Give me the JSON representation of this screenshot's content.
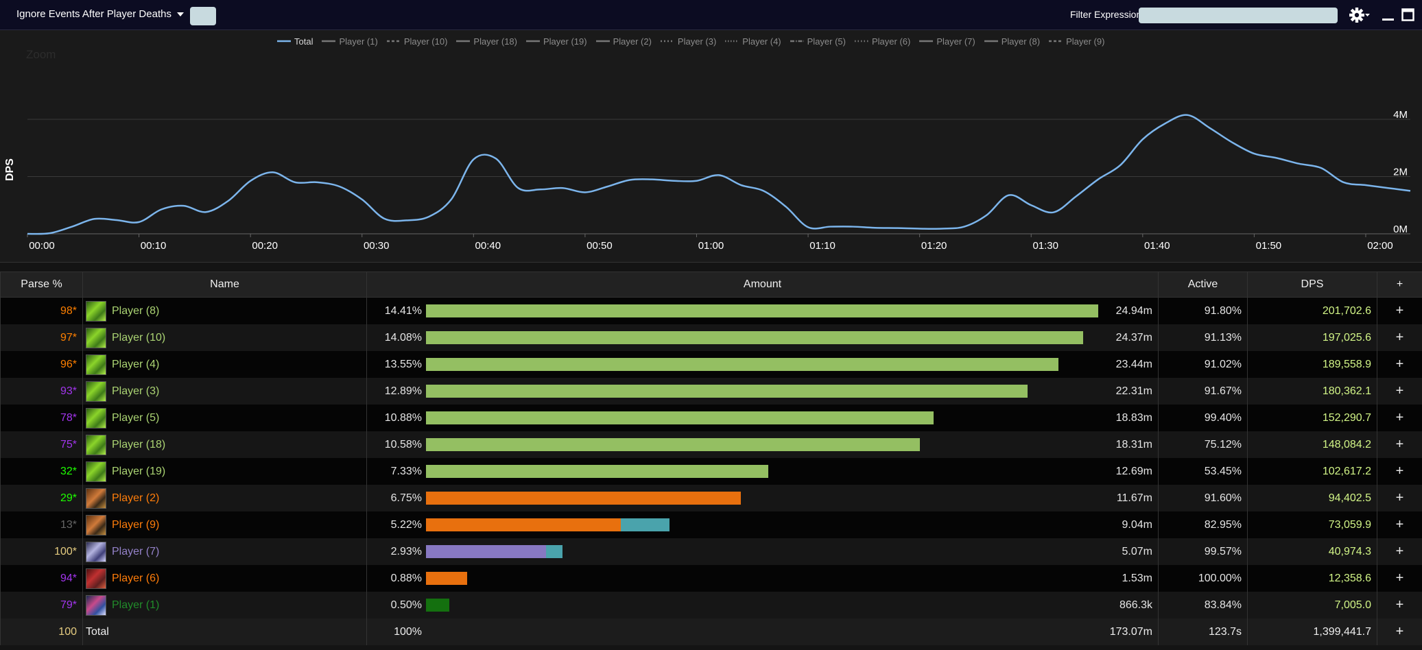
{
  "toolbar": {
    "deaths_dropdown": "Ignore Events After Player Deaths",
    "filter_label": "Filter Expression:",
    "filter_value": ""
  },
  "chart": {
    "zoom_label": "Zoom",
    "y_title": "DPS"
  },
  "chart_data": {
    "type": "line",
    "xlabel": "",
    "ylabel": "DPS",
    "ylim": [
      0,
      4000000
    ],
    "y_ticks": [
      "0M",
      "2M",
      "4M"
    ],
    "x_ticks": [
      "00:00",
      "00:10",
      "00:20",
      "00:30",
      "00:40",
      "00:50",
      "01:00",
      "01:10",
      "01:20",
      "01:30",
      "01:40",
      "01:50",
      "02:00"
    ],
    "legend": [
      "Total",
      "Player (1)",
      "Player (10)",
      "Player (18)",
      "Player (19)",
      "Player (2)",
      "Player (3)",
      "Player (4)",
      "Player (5)",
      "Player (6)",
      "Player (7)",
      "Player (8)",
      "Player (9)"
    ],
    "series": [
      {
        "name": "Total",
        "color": "#7cb5ec",
        "x": [
          0,
          2,
          4,
          6,
          8,
          10,
          12,
          14,
          16,
          18,
          20,
          22,
          24,
          26,
          28,
          30,
          32,
          34,
          36,
          38,
          40,
          42,
          44,
          46,
          48,
          50,
          52,
          54,
          56,
          58,
          60,
          62,
          64,
          66,
          68,
          70,
          72,
          74,
          76,
          78,
          80,
          82,
          84,
          86,
          88,
          90,
          92,
          94,
          96,
          98,
          100,
          102,
          104,
          106,
          108,
          110,
          112,
          114,
          116,
          118,
          120,
          122,
          124
        ],
        "y": [
          0,
          20000,
          250000,
          520000,
          480000,
          410000,
          850000,
          980000,
          760000,
          1150000,
          1850000,
          2150000,
          1800000,
          1800000,
          1650000,
          1200000,
          530000,
          470000,
          600000,
          1200000,
          2600000,
          2630000,
          1600000,
          1550000,
          1600000,
          1450000,
          1650000,
          1880000,
          1900000,
          1850000,
          1850000,
          2050000,
          1700000,
          1500000,
          950000,
          230000,
          250000,
          250000,
          210000,
          200000,
          180000,
          180000,
          250000,
          650000,
          1350000,
          1000000,
          750000,
          1300000,
          1900000,
          2400000,
          3300000,
          3850000,
          4150000,
          3700000,
          3200000,
          2800000,
          2650000,
          2450000,
          2300000,
          1800000,
          1700000,
          1600000,
          1500000
        ]
      }
    ]
  },
  "table": {
    "headers": {
      "parse": "Parse %",
      "name": "Name",
      "amount": "Amount",
      "active": "Active",
      "dps": "DPS",
      "plus": "+"
    },
    "rows": [
      {
        "parse": "98*",
        "parse_class": "q-leg",
        "name": "Player (8)",
        "class_color": "#abd473",
        "icon": "green-icon",
        "pct": "14.41%",
        "bars": [
          {
            "value": 14.41,
            "color": "#94bf62"
          }
        ],
        "amount": "24.94m",
        "active": "91.80%",
        "dps": "201,702.6",
        "plus": "+"
      },
      {
        "parse": "97*",
        "parse_class": "q-leg",
        "name": "Player (10)",
        "class_color": "#abd473",
        "icon": "green-icon",
        "pct": "14.08%",
        "bars": [
          {
            "value": 14.08,
            "color": "#94bf62"
          }
        ],
        "amount": "24.37m",
        "active": "91.13%",
        "dps": "197,025.6",
        "plus": "+"
      },
      {
        "parse": "96*",
        "parse_class": "q-leg",
        "name": "Player (4)",
        "class_color": "#abd473",
        "icon": "green-icon",
        "pct": "13.55%",
        "bars": [
          {
            "value": 13.55,
            "color": "#94bf62"
          }
        ],
        "amount": "23.44m",
        "active": "91.02%",
        "dps": "189,558.9",
        "plus": "+"
      },
      {
        "parse": "93*",
        "parse_class": "q-epic",
        "name": "Player (3)",
        "class_color": "#abd473",
        "icon": "green-icon",
        "pct": "12.89%",
        "bars": [
          {
            "value": 12.89,
            "color": "#94bf62"
          }
        ],
        "amount": "22.31m",
        "active": "91.67%",
        "dps": "180,362.1",
        "plus": "+"
      },
      {
        "parse": "78*",
        "parse_class": "q-epic",
        "name": "Player (5)",
        "class_color": "#abd473",
        "icon": "green-icon",
        "pct": "10.88%",
        "bars": [
          {
            "value": 10.88,
            "color": "#94bf62"
          }
        ],
        "amount": "18.83m",
        "active": "99.40%",
        "dps": "152,290.7",
        "plus": "+"
      },
      {
        "parse": "75*",
        "parse_class": "q-epic",
        "name": "Player (18)",
        "class_color": "#abd473",
        "icon": "green-icon",
        "pct": "10.58%",
        "bars": [
          {
            "value": 10.58,
            "color": "#94bf62"
          }
        ],
        "amount": "18.31m",
        "active": "75.12%",
        "dps": "148,084.2",
        "plus": "+"
      },
      {
        "parse": "32*",
        "parse_class": "q-unc",
        "name": "Player (19)",
        "class_color": "#abd473",
        "icon": "green-icon",
        "pct": "7.33%",
        "bars": [
          {
            "value": 7.33,
            "color": "#94bf62"
          }
        ],
        "amount": "12.69m",
        "active": "53.45%",
        "dps": "102,617.2",
        "plus": "+"
      },
      {
        "parse": "29*",
        "parse_class": "q-unc",
        "name": "Player (2)",
        "class_color": "#ff7d0a",
        "icon": "hunter-icon",
        "pct": "6.75%",
        "bars": [
          {
            "value": 6.75,
            "color": "#e8700e"
          }
        ],
        "amount": "11.67m",
        "active": "91.60%",
        "dps": "94,402.5",
        "plus": "+"
      },
      {
        "parse": "13*",
        "parse_class": "q-com",
        "name": "Player (9)",
        "class_color": "#ff7d0a",
        "icon": "hunter-icon",
        "pct": "5.22%",
        "bars": [
          {
            "value": 4.17,
            "color": "#e8700e"
          },
          {
            "value": 1.05,
            "color": "#4aa3ac"
          }
        ],
        "amount": "9.04m",
        "active": "82.95%",
        "dps": "73,059.9",
        "plus": "+"
      },
      {
        "parse": "100*",
        "parse_class": "q-art",
        "name": "Player (7)",
        "class_color": "#9482c9",
        "icon": "purple-icon",
        "pct": "2.93%",
        "bars": [
          {
            "value": 2.57,
            "color": "#8778c2"
          },
          {
            "value": 0.36,
            "color": "#4aa3ac"
          }
        ],
        "amount": "5.07m",
        "active": "99.57%",
        "dps": "40,974.3",
        "plus": "+"
      },
      {
        "parse": "94*",
        "parse_class": "q-epic",
        "name": "Player (6)",
        "class_color": "#ff7d0a",
        "icon": "red-icon",
        "pct": "0.88%",
        "bars": [
          {
            "value": 0.88,
            "color": "#e8700e"
          }
        ],
        "amount": "1.53m",
        "active": "100.00%",
        "dps": "12,358.6",
        "plus": "+"
      },
      {
        "parse": "79*",
        "parse_class": "q-epic",
        "name": "Player (1)",
        "class_color": "#218c2a",
        "icon": "blue-icon",
        "pct": "0.50%",
        "bars": [
          {
            "value": 0.5,
            "color": "#14700f"
          }
        ],
        "amount": "866.3k",
        "active": "83.84%",
        "dps": "7,005.0",
        "plus": "+"
      }
    ],
    "total": {
      "parse": "100",
      "name": "Total",
      "pct": "100%",
      "amount": "173.07m",
      "active": "123.7s",
      "dps": "1,399,441.7",
      "plus": "+"
    },
    "bar_max_pct": 14.41
  }
}
